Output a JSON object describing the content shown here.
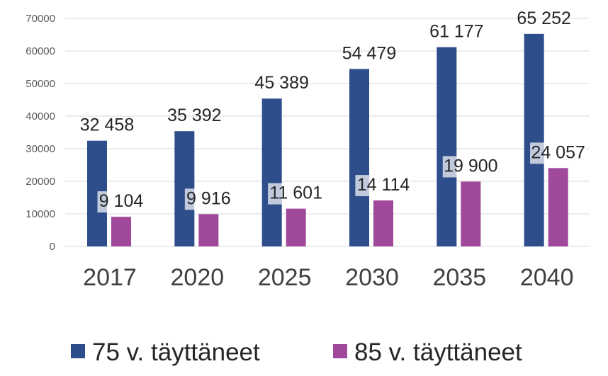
{
  "chart_data": {
    "type": "bar",
    "categories": [
      "2017",
      "2020",
      "2025",
      "2030",
      "2035",
      "2040"
    ],
    "series": [
      {
        "name": "75 v. täyttäneet",
        "values": [
          32458,
          35392,
          45389,
          54479,
          61177,
          65252
        ],
        "labels": [
          "32 458",
          "35 392",
          "45 389",
          "54 479",
          "61 177",
          "65 252"
        ],
        "color": "#2e4d8b"
      },
      {
        "name": "85 v. täyttäneet",
        "values": [
          9104,
          9916,
          11601,
          14114,
          19900,
          24057
        ],
        "labels": [
          "9 104",
          "9 916",
          "11 601",
          "14 114",
          "19 900",
          "24 057"
        ],
        "color": "#a0499b"
      }
    ],
    "ylim": [
      0,
      70000
    ],
    "yticks": [
      0,
      10000,
      20000,
      30000,
      40000,
      50000,
      60000,
      70000
    ],
    "ytick_labels": [
      "0",
      "10000",
      "20000",
      "30000",
      "40000",
      "50000",
      "60000",
      "70000"
    ],
    "grid": true,
    "legend_position": "bottom"
  }
}
